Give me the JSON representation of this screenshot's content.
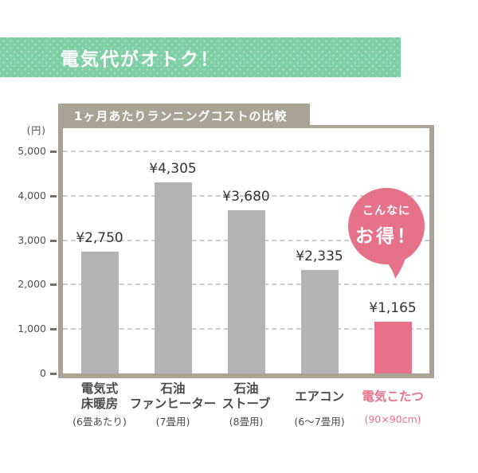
{
  "banner": {
    "label": "電気代がオトク！",
    "bg_color": "#7ecfa4",
    "dot_color": "#a6ddc2"
  },
  "chart": {
    "title": "1ヶ月あたりランニングコストの比較",
    "unit_label": "(円)",
    "frame_color": "#a9a396",
    "y_axis": [
      {
        "value": 0,
        "label": "0"
      },
      {
        "value": 1000,
        "label": "1,000"
      },
      {
        "value": 2000,
        "label": "2,000"
      },
      {
        "value": 3000,
        "label": "3,000"
      },
      {
        "value": 4000,
        "label": "4,000"
      },
      {
        "value": 5000,
        "label": "5,000"
      }
    ]
  },
  "chart_data": {
    "type": "bar",
    "title": "1ヶ月あたりランニングコストの比較",
    "ylabel": "円",
    "ylim": [
      0,
      5000
    ],
    "grid": "dashed-horizontal",
    "gridline_values": [
      1000,
      2000,
      3000,
      4000,
      5000
    ],
    "categories": [
      "電気式床暖房",
      "石油ファンヒーター",
      "石油ストーブ",
      "エアコン",
      "電気こたつ"
    ],
    "values": [
      2750,
      4305,
      3680,
      2335,
      1165
    ],
    "value_labels": [
      "¥2,750",
      "¥4,305",
      "¥3,680",
      "¥2,335",
      "¥1,165"
    ],
    "category_labels": [
      {
        "lines": [
          "電気式",
          "床暖房"
        ],
        "note": "(6畳あたり)"
      },
      {
        "lines": [
          "石油",
          "ファンヒーター"
        ],
        "note": "(7畳用)"
      },
      {
        "lines": [
          "石油",
          "ストーブ"
        ],
        "note": "(8畳用)"
      },
      {
        "lines": [
          "エアコン"
        ],
        "note": "(6～7畳用)"
      },
      {
        "lines": [
          "電気こたつ"
        ],
        "note": "(90×90cm)"
      }
    ],
    "highlight_index": 4,
    "bar_color": "#b3b3b3",
    "highlight_color": "#e8718a"
  },
  "bubble": {
    "line1": "こんなに",
    "line2": "お得！",
    "color": "#e8718a"
  }
}
